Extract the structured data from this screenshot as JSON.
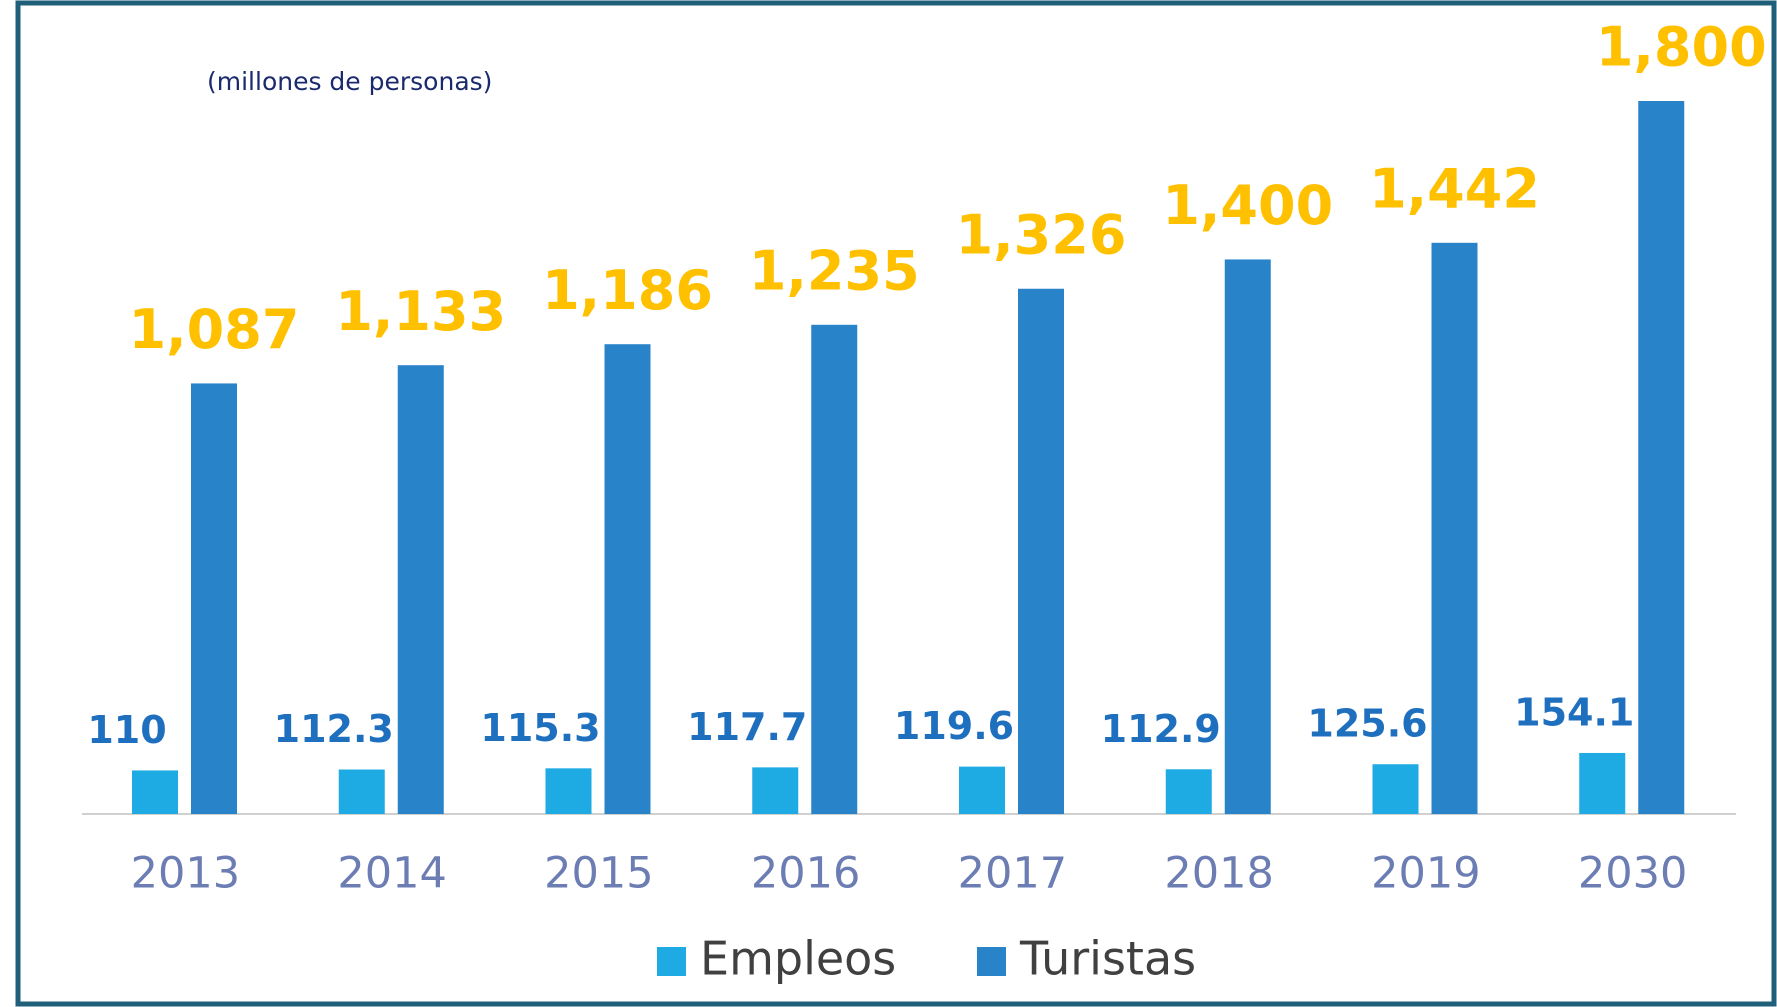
{
  "chart_data": {
    "type": "bar",
    "subtitle": "(millones de personas)",
    "categories": [
      "2013",
      "2014",
      "2015",
      "2016",
      "2017",
      "2018",
      "2019",
      "2030"
    ],
    "series": [
      {
        "name": "Empleos",
        "color": "#1eaae2",
        "label_color": "#1f6fbf",
        "values": [
          110,
          112.3,
          115.3,
          117.7,
          119.6,
          112.9,
          125.6,
          154.1
        ]
      },
      {
        "name": "Turistas",
        "color": "#2983c9",
        "label_color": "#ffc000",
        "values": [
          1087,
          1133,
          1186,
          1235,
          1326,
          1400,
          1442,
          1800
        ],
        "value_labels": [
          "1,087",
          "1,133",
          "1,186",
          "1,235",
          "1,326",
          "1,400",
          "1,442",
          "1,800"
        ]
      }
    ]
  }
}
